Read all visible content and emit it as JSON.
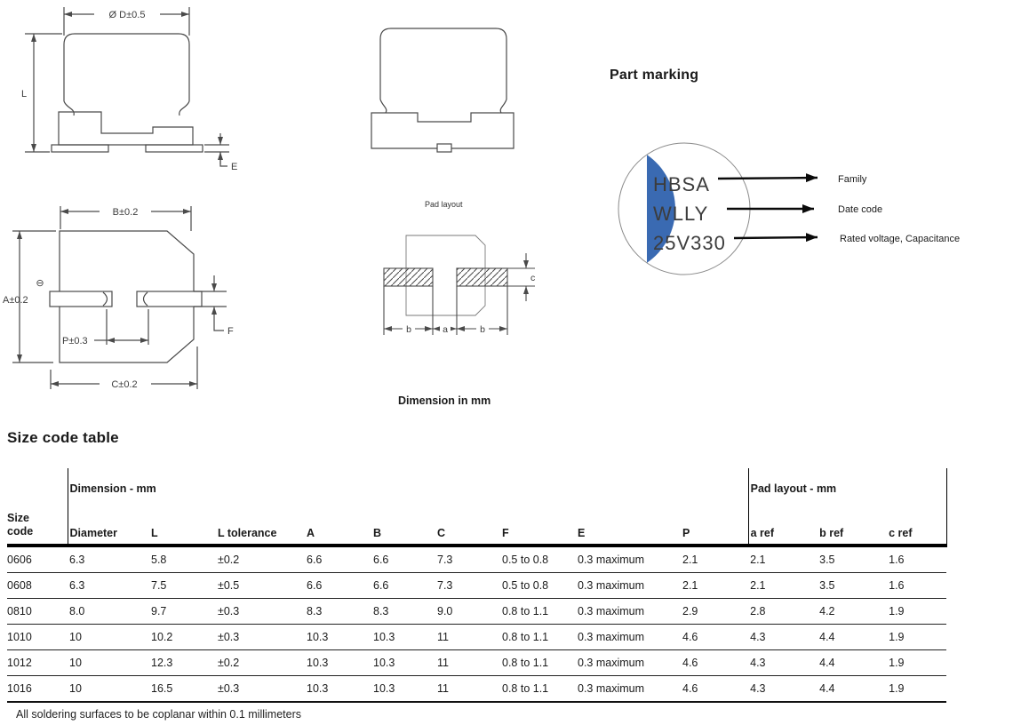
{
  "drawings": {
    "side_view": {
      "dim_diameter": "Ø D±0.5",
      "dim_length": "L",
      "dim_e": "E"
    },
    "bottom_view": {
      "dim_b": "B±0.2",
      "dim_a": "A±0.2",
      "dim_p": "P±0.3",
      "dim_c": "C±0.2",
      "dim_f": "F",
      "polarity_symbol": "⊖"
    },
    "pad_layout": {
      "caption": "Pad layout",
      "dim_b_left": "b",
      "dim_a": "a",
      "dim_b_right": "b",
      "dim_c": "c"
    },
    "units_caption": "Dimension in mm"
  },
  "part_marking": {
    "heading": "Part marking",
    "lines": [
      "HBSA",
      "WLLY",
      "25V330"
    ],
    "callouts": [
      "Family",
      "Date code",
      "Rated voltage, Capacitance"
    ],
    "text_color": "#3a6ab2"
  },
  "size_code_table": {
    "heading": "Size code table",
    "group_dimension": "Dimension - mm",
    "group_pad": "Pad layout - mm",
    "columns": [
      "Size code",
      "Diameter",
      "L",
      "L tolerance",
      "A",
      "B",
      "C",
      "F",
      "E",
      "P",
      "a ref",
      "b ref",
      "c ref"
    ],
    "rows": [
      [
        "0606",
        "6.3",
        "5.8",
        "±0.2",
        "6.6",
        "6.6",
        "7.3",
        "0.5 to 0.8",
        "0.3 maximum",
        "2.1",
        "2.1",
        "3.5",
        "1.6"
      ],
      [
        "0608",
        "6.3",
        "7.5",
        "±0.5",
        "6.6",
        "6.6",
        "7.3",
        "0.5 to 0.8",
        "0.3 maximum",
        "2.1",
        "2.1",
        "3.5",
        "1.6"
      ],
      [
        "0810",
        "8.0",
        "9.7",
        "±0.3",
        "8.3",
        "8.3",
        "9.0",
        "0.8 to 1.1",
        "0.3 maximum",
        "2.9",
        "2.8",
        "4.2",
        "1.9"
      ],
      [
        "1010",
        "10",
        "10.2",
        "±0.3",
        "10.3",
        "10.3",
        "11",
        "0.8 to 1.1",
        "0.3 maximum",
        "4.6",
        "4.3",
        "4.4",
        "1.9"
      ],
      [
        "1012",
        "10",
        "12.3",
        "±0.2",
        "10.3",
        "10.3",
        "11",
        "0.8 to 1.1",
        "0.3 maximum",
        "4.6",
        "4.3",
        "4.4",
        "1.9"
      ],
      [
        "1016",
        "10",
        "16.5",
        "±0.3",
        "10.3",
        "10.3",
        "11",
        "0.8 to 1.1",
        "0.3 maximum",
        "4.6",
        "4.3",
        "4.4",
        "1.9"
      ]
    ]
  },
  "footnote": "All soldering surfaces to be coplanar within 0.1 millimeters"
}
